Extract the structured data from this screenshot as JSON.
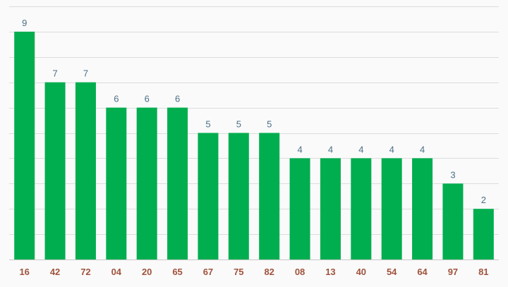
{
  "chart_data": {
    "type": "bar",
    "title": "",
    "xlabel": "",
    "ylabel": "",
    "categories": [
      "16",
      "42",
      "72",
      "04",
      "20",
      "65",
      "67",
      "75",
      "82",
      "08",
      "13",
      "40",
      "54",
      "64",
      "97",
      "81"
    ],
    "values": [
      9,
      7,
      7,
      6,
      6,
      6,
      5,
      5,
      5,
      4,
      4,
      4,
      4,
      4,
      3,
      2
    ],
    "ylim": [
      0,
      10
    ],
    "grid": true,
    "colors": {
      "bar": "#00ae4f",
      "value_label": "#4a6f86",
      "category_label": "#a0533d",
      "background": "#fafafa",
      "grid": "#dcdcdc"
    }
  }
}
